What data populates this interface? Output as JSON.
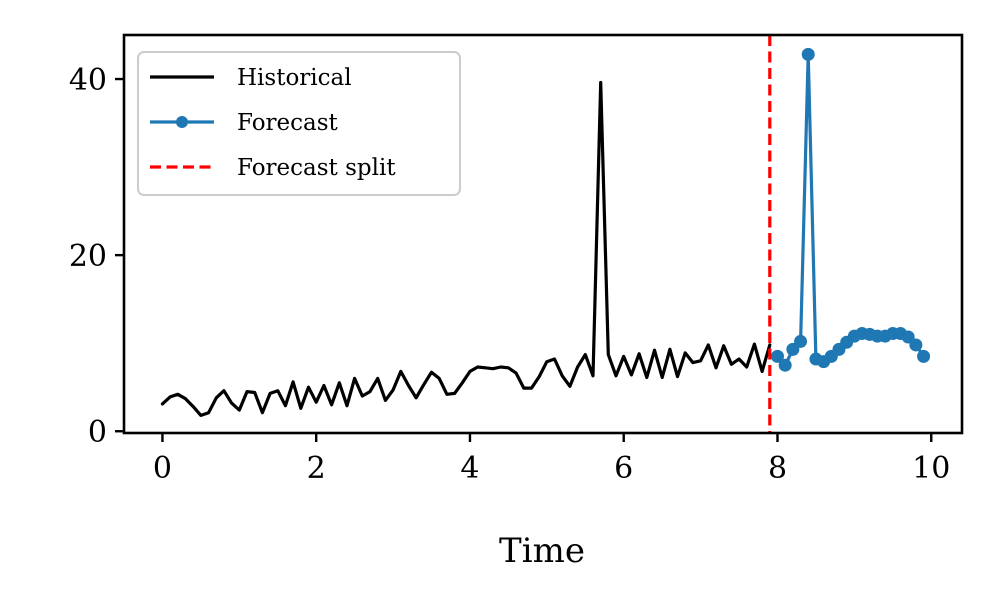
{
  "chart_data": {
    "type": "line",
    "title": "",
    "xlabel": "Time",
    "ylabel": "",
    "xlim": [
      -0.5,
      10.4
    ],
    "ylim": [
      -0.2,
      45
    ],
    "xticks": [
      0,
      2,
      4,
      6,
      8,
      10
    ],
    "yticks": [
      0,
      20,
      40
    ],
    "grid": false,
    "legend_position": "top-left",
    "split_x": 7.9,
    "series": [
      {
        "name": "Historical",
        "color": "#000000",
        "marker": false,
        "x": [
          0,
          0.1,
          0.2,
          0.3,
          0.4,
          0.5,
          0.6,
          0.7,
          0.8,
          0.9,
          1.0,
          1.1,
          1.2,
          1.3,
          1.4,
          1.5,
          1.6,
          1.7,
          1.8,
          1.9,
          2.0,
          2.1,
          2.2,
          2.3,
          2.4,
          2.5,
          2.6,
          2.7,
          2.8,
          2.9,
          3.0,
          3.1,
          3.2,
          3.3,
          3.4,
          3.5,
          3.6,
          3.7,
          3.8,
          3.9,
          4.0,
          4.1,
          4.2,
          4.3,
          4.4,
          4.5,
          4.6,
          4.7,
          4.8,
          4.9,
          5.0,
          5.1,
          5.2,
          5.3,
          5.4,
          5.5,
          5.6,
          5.7,
          5.8,
          5.9,
          6.0,
          6.1,
          6.2,
          6.3,
          6.4,
          6.5,
          6.6,
          6.7,
          6.8,
          6.9,
          7.0,
          7.1,
          7.2,
          7.3,
          7.4,
          7.5,
          7.6,
          7.7,
          7.8,
          7.9
        ],
        "values": [
          3.1,
          3.9,
          4.2,
          3.7,
          2.8,
          1.8,
          2.1,
          3.8,
          4.6,
          3.2,
          2.4,
          4.5,
          4.4,
          2.1,
          4.3,
          4.6,
          2.9,
          5.6,
          2.6,
          5.0,
          3.3,
          5.2,
          3.0,
          5.5,
          2.9,
          6.0,
          4.0,
          4.5,
          6.0,
          3.5,
          4.7,
          6.8,
          5.2,
          3.8,
          5.3,
          6.7,
          6.0,
          4.2,
          4.3,
          5.5,
          6.8,
          7.3,
          7.2,
          7.1,
          7.3,
          7.2,
          6.6,
          4.9,
          4.9,
          6.2,
          7.9,
          8.2,
          6.3,
          5.1,
          7.3,
          8.7,
          6.3,
          39.6,
          8.7,
          6.3,
          8.5,
          6.4,
          8.8,
          6.1,
          9.2,
          6.1,
          9.3,
          6.2,
          8.9,
          7.8,
          8.0,
          9.8,
          7.2,
          9.7,
          7.6,
          8.2,
          7.3,
          9.9,
          6.8,
          9.8
        ]
      },
      {
        "name": "Forecast",
        "color": "#1f77b4",
        "marker": true,
        "x": [
          8.0,
          8.1,
          8.2,
          8.3,
          8.4,
          8.5,
          8.6,
          8.7,
          8.8,
          8.9,
          9.0,
          9.1,
          9.2,
          9.3,
          9.4,
          9.5,
          9.6,
          9.7,
          9.8,
          9.9
        ],
        "values": [
          8.5,
          7.5,
          9.3,
          10.2,
          42.8,
          8.2,
          7.9,
          8.5,
          9.3,
          10.1,
          10.8,
          11.1,
          11.0,
          10.8,
          10.8,
          11.1,
          11.1,
          10.7,
          9.8,
          8.5
        ]
      }
    ],
    "legend": [
      {
        "label": "Historical",
        "style": "line",
        "color": "#000000"
      },
      {
        "label": "Forecast",
        "style": "line-marker",
        "color": "#1f77b4"
      },
      {
        "label": "Forecast split",
        "style": "dashed",
        "color": "#ff0000"
      }
    ]
  }
}
